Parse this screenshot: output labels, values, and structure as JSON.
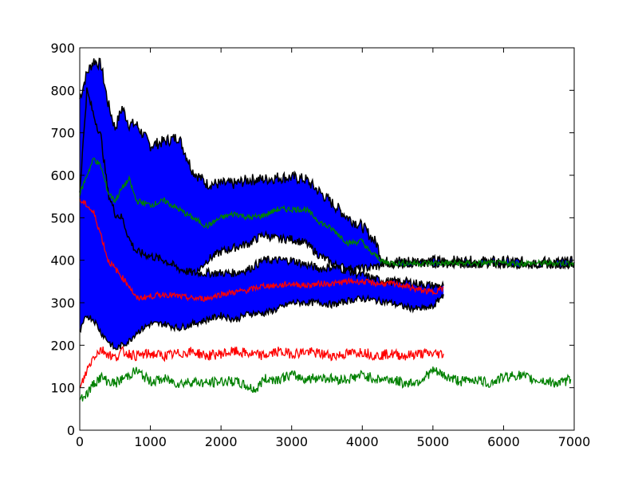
{
  "chart_data": {
    "type": "area",
    "xlim": [
      0,
      7000
    ],
    "ylim": [
      0,
      900
    ],
    "x_ticks": [
      "0",
      "1000",
      "2000",
      "3000",
      "4000",
      "5000",
      "6000",
      "7000"
    ],
    "y_ticks": [
      "0",
      "100",
      "200",
      "300",
      "400",
      "500",
      "600",
      "700",
      "800",
      "900"
    ],
    "grid": false,
    "legend": "none",
    "series": [
      {
        "role": "band-green-mean",
        "color": "#0000ff",
        "x": [
          0,
          100,
          200,
          300,
          400,
          500,
          600,
          700,
          800,
          1000,
          1200,
          1400,
          1600,
          1800,
          2000,
          2200,
          2400,
          2600,
          2800,
          3000,
          3200,
          3400,
          3600,
          3800,
          4000,
          4200,
          4300,
          4500,
          5000,
          5500,
          6000,
          6500,
          7000
        ],
        "upper": [
          780,
          840,
          870,
          860,
          770,
          710,
          760,
          720,
          720,
          670,
          680,
          690,
          610,
          580,
          580,
          580,
          590,
          590,
          595,
          595,
          590,
          560,
          530,
          500,
          480,
          440,
          395,
          397,
          398,
          397,
          396,
          395,
          395
        ],
        "lower": [
          350,
          360,
          360,
          390,
          440,
          420,
          450,
          410,
          390,
          390,
          380,
          360,
          360,
          400,
          420,
          430,
          440,
          460,
          450,
          450,
          440,
          410,
          390,
          380,
          380,
          385,
          390,
          392,
          392,
          391,
          391,
          390,
          390
        ]
      },
      {
        "role": "band-red-mean",
        "color": "#0000ff",
        "x": [
          0,
          100,
          200,
          300,
          400,
          500,
          600,
          700,
          800,
          1000,
          1200,
          1400,
          1600,
          1800,
          2000,
          2200,
          2400,
          2600,
          2800,
          3000,
          3200,
          3400,
          3600,
          3800,
          4000,
          4200,
          4400,
          4600,
          4800,
          5000,
          5150
        ],
        "upper": [
          560,
          800,
          740,
          690,
          560,
          510,
          500,
          450,
          420,
          410,
          400,
          380,
          370,
          370,
          370,
          370,
          380,
          400,
          400,
          400,
          390,
          380,
          385,
          375,
          365,
          355,
          350,
          350,
          345,
          340,
          340
        ],
        "lower": [
          230,
          270,
          260,
          230,
          210,
          190,
          200,
          210,
          230,
          250,
          250,
          240,
          250,
          260,
          270,
          260,
          275,
          275,
          285,
          300,
          300,
          300,
          295,
          305,
          310,
          305,
          300,
          290,
          285,
          290,
          320
        ]
      },
      {
        "role": "green-mean",
        "color": "#008000",
        "x": [
          0,
          100,
          200,
          300,
          400,
          500,
          600,
          700,
          800,
          1000,
          1200,
          1400,
          1600,
          1800,
          2000,
          2200,
          2400,
          2600,
          2800,
          3000,
          3200,
          3400,
          3600,
          3800,
          4000,
          4100,
          4200,
          4300,
          4500,
          5000,
          5500,
          6000,
          6500,
          7000
        ],
        "y": [
          555,
          600,
          640,
          620,
          560,
          540,
          570,
          590,
          540,
          530,
          540,
          520,
          500,
          480,
          500,
          510,
          500,
          505,
          520,
          520,
          520,
          490,
          470,
          440,
          445,
          420,
          410,
          395,
          393,
          393,
          393,
          393,
          393,
          393
        ]
      },
      {
        "role": "red-mean",
        "color": "#ff0000",
        "x": [
          0,
          100,
          150,
          200,
          300,
          400,
          500,
          600,
          700,
          800,
          1000,
          1200,
          1400,
          1600,
          1800,
          2000,
          2200,
          2400,
          2600,
          2800,
          3000,
          3200,
          3400,
          3600,
          3800,
          4000,
          4200,
          4400,
          4600,
          4800,
          5000,
          5150
        ],
        "y": [
          540,
          530,
          520,
          510,
          460,
          400,
          380,
          360,
          340,
          310,
          315,
          320,
          315,
          310,
          310,
          320,
          325,
          330,
          340,
          340,
          345,
          340,
          345,
          345,
          350,
          350,
          345,
          345,
          340,
          330,
          325,
          335
        ]
      },
      {
        "role": "red-lower",
        "color": "#ff0000",
        "x": [
          0,
          100,
          200,
          300,
          400,
          500,
          600,
          800,
          1000,
          1200,
          1400,
          1600,
          1800,
          2000,
          2200,
          2400,
          2600,
          2800,
          3000,
          3200,
          3400,
          3600,
          3800,
          4000,
          4200,
          4400,
          4600,
          4800,
          5000,
          5150
        ],
        "y": [
          95,
          140,
          175,
          190,
          180,
          170,
          185,
          175,
          180,
          175,
          180,
          185,
          175,
          180,
          185,
          180,
          175,
          185,
          180,
          185,
          180,
          175,
          180,
          185,
          175,
          180,
          175,
          180,
          180,
          180
        ]
      },
      {
        "role": "green-lower",
        "color": "#008000",
        "x": [
          0,
          100,
          200,
          300,
          400,
          500,
          600,
          800,
          1000,
          1200,
          1400,
          1600,
          1800,
          2000,
          2200,
          2400,
          2500,
          2600,
          2800,
          3000,
          3200,
          3400,
          3600,
          3800,
          4000,
          4200,
          4400,
          4600,
          4800,
          5000,
          5200,
          5400,
          5600,
          5800,
          6000,
          6200,
          6400,
          6600,
          6800,
          6950
        ],
        "y": [
          75,
          85,
          110,
          125,
          115,
          110,
          120,
          140,
          115,
          120,
          110,
          115,
          110,
          115,
          115,
          100,
          95,
          120,
          120,
          130,
          120,
          125,
          120,
          120,
          130,
          120,
          120,
          110,
          115,
          140,
          125,
          115,
          120,
          110,
          125,
          130,
          120,
          115,
          110,
          120
        ]
      }
    ]
  }
}
